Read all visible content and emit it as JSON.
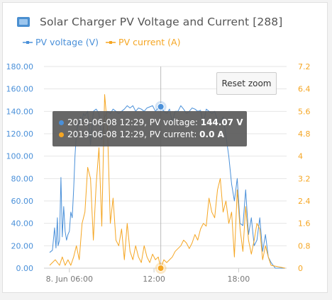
{
  "header": {
    "title": "Solar Charger PV Voltage and Current [288]"
  },
  "legend": [
    {
      "label": "PV voltage (V)",
      "color": "#4a90d9"
    },
    {
      "label": "PV current (A)",
      "color": "#f5a623"
    }
  ],
  "controls": {
    "reset_zoom_label": "Reset zoom"
  },
  "tooltip": {
    "voltage_prefix": "2019-06-08 12:29, PV voltage: ",
    "voltage_value": "144.07 V",
    "current_prefix": "2019-06-08 12:29, PV current: ",
    "current_value": "0.0 A"
  },
  "chart_data": {
    "type": "line",
    "x_tick_labels": [
      "8. Jun 06:00",
      "12:00",
      "18:00"
    ],
    "x_tick_hours": [
      6,
      12,
      18
    ],
    "xlim": [
      4.2,
      21.4
    ],
    "y_left_ticks": [
      "0.00",
      "20.00",
      "40.00",
      "60.00",
      "80.00",
      "100.00",
      "120.00",
      "140.00",
      "160.00",
      "180.00"
    ],
    "y_left_lim": [
      0,
      180
    ],
    "y_right_ticks": [
      "0",
      "0.8",
      "1.6",
      "2.4",
      "3.2",
      "4",
      "4.8",
      "5.6",
      "6.4",
      "7.2"
    ],
    "y_right_lim": [
      0,
      7.2
    ],
    "crosshair_hour": 12.48,
    "series": [
      {
        "name": "PV voltage (V)",
        "axis": "left",
        "color": "#4a90d9",
        "x": [
          4.6,
          4.8,
          4.95,
          5.05,
          5.15,
          5.2,
          5.3,
          5.4,
          5.5,
          5.6,
          5.7,
          5.8,
          5.9,
          6.0,
          6.1,
          6.2,
          6.3,
          6.4,
          6.5,
          6.6,
          6.7,
          6.8,
          6.9,
          7.0,
          7.1,
          7.3,
          7.5,
          7.7,
          7.9,
          8.1,
          8.3,
          8.5,
          8.7,
          8.9,
          9.1,
          9.3,
          9.5,
          9.7,
          9.9,
          10.1,
          10.3,
          10.5,
          10.7,
          10.9,
          11.1,
          11.3,
          11.5,
          11.7,
          11.9,
          12.1,
          12.3,
          12.48,
          12.7,
          12.9,
          13.1,
          13.3,
          13.5,
          13.7,
          13.9,
          14.1,
          14.3,
          14.5,
          14.7,
          14.9,
          15.1,
          15.3,
          15.5,
          15.7,
          15.9,
          16.1,
          16.3,
          16.5,
          16.7,
          16.9,
          17.1,
          17.3,
          17.5,
          17.7,
          17.9,
          18.1,
          18.3,
          18.5,
          18.7,
          18.9,
          19.1,
          19.3,
          19.5,
          19.7,
          19.9,
          20.1,
          20.3,
          20.6,
          21.3
        ],
        "values": [
          14,
          16,
          36,
          18,
          45,
          20,
          25,
          81,
          28,
          55,
          33,
          25,
          30,
          33,
          50,
          45,
          70,
          100,
          120,
          128,
          130,
          135,
          132,
          138,
          136,
          140,
          110,
          140,
          142,
          138,
          115,
          135,
          140,
          138,
          142,
          140,
          138,
          140,
          142,
          145,
          143,
          145,
          140,
          143,
          142,
          140,
          143,
          144,
          145,
          140,
          143,
          144.07,
          140,
          138,
          142,
          130,
          140,
          140,
          145,
          142,
          138,
          140,
          143,
          142,
          140,
          141,
          128,
          142,
          140,
          138,
          140,
          132,
          130,
          135,
          118,
          100,
          75,
          60,
          80,
          40,
          38,
          70,
          30,
          45,
          20,
          25,
          45,
          15,
          30,
          10,
          5,
          0,
          0
        ]
      },
      {
        "name": "PV current (A)",
        "axis": "right",
        "color": "#f5a623",
        "x": [
          4.6,
          5.0,
          5.3,
          5.5,
          5.7,
          5.9,
          6.1,
          6.3,
          6.5,
          6.7,
          6.9,
          7.1,
          7.3,
          7.5,
          7.7,
          7.9,
          8.1,
          8.3,
          8.5,
          8.7,
          8.9,
          9.1,
          9.3,
          9.5,
          9.7,
          9.9,
          10.1,
          10.3,
          10.5,
          10.7,
          10.9,
          11.1,
          11.3,
          11.5,
          11.7,
          11.9,
          12.1,
          12.3,
          12.48,
          12.7,
          12.9,
          13.1,
          13.3,
          13.5,
          13.7,
          13.9,
          14.1,
          14.3,
          14.5,
          14.7,
          14.9,
          15.1,
          15.3,
          15.5,
          15.7,
          15.9,
          16.1,
          16.3,
          16.5,
          16.7,
          16.9,
          17.1,
          17.3,
          17.5,
          17.7,
          17.9,
          18.1,
          18.3,
          18.5,
          18.7,
          18.9,
          19.1,
          19.3,
          19.5,
          19.7,
          19.9,
          20.1,
          20.3,
          21.3
        ],
        "values": [
          0.1,
          0.3,
          0.1,
          0.4,
          0.1,
          0.3,
          0.1,
          0.4,
          0.8,
          0.3,
          1.6,
          2.0,
          3.6,
          3.2,
          1.0,
          3.0,
          4.3,
          1.5,
          6.2,
          5.0,
          1.6,
          2.5,
          1.0,
          0.8,
          1.4,
          0.3,
          1.6,
          0.6,
          0.3,
          0.8,
          0.4,
          0.2,
          0.8,
          0.4,
          0.2,
          0.5,
          0.3,
          0.4,
          0.0,
          0.3,
          0.2,
          0.3,
          0.4,
          0.6,
          0.7,
          0.8,
          1.0,
          0.9,
          0.7,
          0.9,
          1.2,
          1.0,
          1.4,
          1.6,
          1.5,
          2.5,
          2.0,
          1.8,
          2.8,
          3.2,
          2.0,
          2.4,
          1.6,
          2.0,
          0.4,
          2.8,
          1.4,
          0.6,
          2.2,
          1.0,
          0.5,
          1.0,
          1.6,
          1.4,
          0.3,
          0.8,
          0.4,
          0.1,
          0.0
        ]
      }
    ]
  }
}
